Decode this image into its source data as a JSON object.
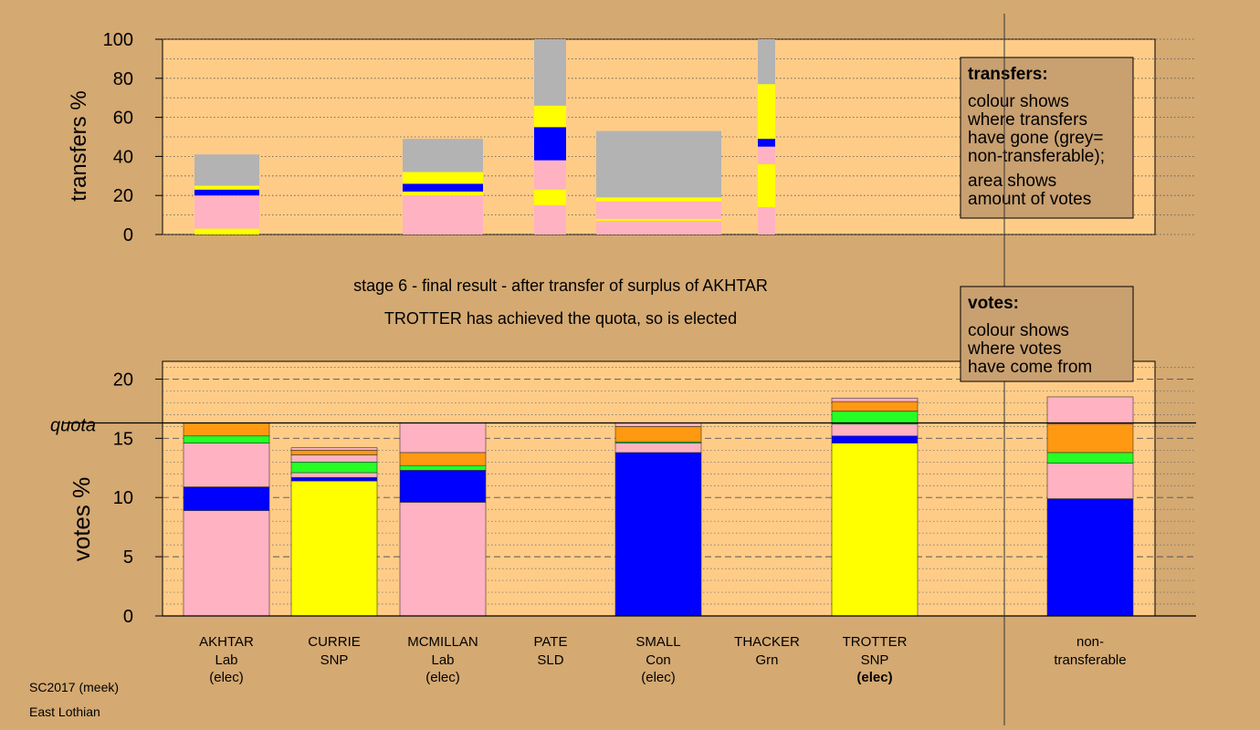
{
  "chart_data": [
    {
      "type": "bar",
      "ylabel": "transfers %",
      "ylim": [
        0,
        100
      ],
      "yticks": [
        0,
        20,
        40,
        60,
        80,
        100
      ],
      "grid": true,
      "legend": {
        "title": "transfers:",
        "lines": [
          "colour shows",
          "where transfers",
          "have gone (grey=",
          "non-transferable);"
        ],
        "lines2": [
          "area shows",
          "amount of votes"
        ]
      },
      "colors": {
        "pink": "#ffb2c1",
        "yellow": "#ffff00",
        "blue": "#0000ff",
        "grey": "#b3b3b3",
        "green": "#26ff26",
        "orange": "#ff9911"
      },
      "columns": [
        {
          "candidate": "AKHTAR",
          "segments": [
            {
              "color": "yellow",
              "value": 3
            },
            {
              "color": "pink",
              "value": 17
            },
            {
              "color": "blue",
              "value": 3
            },
            {
              "color": "yellow",
              "value": 2
            },
            {
              "color": "grey",
              "value": 16
            }
          ]
        },
        {
          "candidate": "MCMILLAN",
          "segments": [
            {
              "color": "pink",
              "value": 20
            },
            {
              "color": "yellow",
              "value": 2
            },
            {
              "color": "blue",
              "value": 4
            },
            {
              "color": "yellow",
              "value": 6
            },
            {
              "color": "grey",
              "value": 17
            }
          ]
        },
        {
          "candidate": "PATE",
          "segments": [
            {
              "color": "pink",
              "value": 15
            },
            {
              "color": "yellow",
              "value": 8
            },
            {
              "color": "pink",
              "value": 15
            },
            {
              "color": "blue",
              "value": 17
            },
            {
              "color": "yellow",
              "value": 11
            },
            {
              "color": "grey",
              "value": 34
            }
          ]
        },
        {
          "candidate": "SMALL",
          "segments": [
            {
              "color": "pink",
              "value": 7
            },
            {
              "color": "yellow",
              "value": 1
            },
            {
              "color": "pink",
              "value": 9
            },
            {
              "color": "yellow",
              "value": 2
            },
            {
              "color": "grey",
              "value": 34
            }
          ]
        },
        {
          "candidate": "THACKER",
          "segments": [
            {
              "color": "pink",
              "value": 14
            },
            {
              "color": "yellow",
              "value": 22
            },
            {
              "color": "pink",
              "value": 9
            },
            {
              "color": "blue",
              "value": 4
            },
            {
              "color": "yellow",
              "value": 28
            },
            {
              "color": "grey",
              "value": 23
            }
          ]
        }
      ]
    },
    {
      "type": "bar",
      "title": "stage 6 - final result - after transfer of surplus of AKHTAR",
      "subtitle": "TROTTER has achieved the quota, so is elected",
      "ylabel": "votes %",
      "ylim": [
        0,
        21.5
      ],
      "yticks": [
        0,
        5,
        10,
        15,
        20
      ],
      "quota_label": "quota",
      "quota": 16.3,
      "grid": true,
      "legend": {
        "title": "votes:",
        "lines": [
          "colour shows",
          "where votes",
          "have come from"
        ]
      },
      "categories": [
        {
          "name": "AKHTAR",
          "party": "Lab",
          "status": "(elec)"
        },
        {
          "name": "CURRIE",
          "party": "SNP",
          "status": ""
        },
        {
          "name": "MCMILLAN",
          "party": "Lab",
          "status": "(elec)"
        },
        {
          "name": "PATE",
          "party": "SLD",
          "status": ""
        },
        {
          "name": "SMALL",
          "party": "Con",
          "status": "(elec)"
        },
        {
          "name": "THACKER",
          "party": "Grn",
          "status": ""
        },
        {
          "name": "TROTTER",
          "party": "SNP",
          "status": "(elec)"
        },
        {
          "name": "non-",
          "party": "transferable",
          "status": ""
        }
      ],
      "stacks": [
        [
          {
            "color": "pink",
            "value": 8.9
          },
          {
            "color": "blue",
            "value": 2.0
          },
          {
            "color": "pink",
            "value": 3.7
          },
          {
            "color": "green",
            "value": 0.6
          },
          {
            "color": "orange",
            "value": 1.1
          }
        ],
        [
          {
            "color": "yellow",
            "value": 11.4
          },
          {
            "color": "blue",
            "value": 0.3
          },
          {
            "color": "pink",
            "value": 0.4
          },
          {
            "color": "green",
            "value": 0.9
          },
          {
            "color": "pink",
            "value": 0.6
          },
          {
            "color": "orange",
            "value": 0.4
          },
          {
            "color": "pink",
            "value": 0.2
          }
        ],
        [
          {
            "color": "pink",
            "value": 9.6
          },
          {
            "color": "blue",
            "value": 2.7
          },
          {
            "color": "green",
            "value": 0.4
          },
          {
            "color": "orange",
            "value": 1.1
          },
          {
            "color": "pink",
            "value": 2.5
          }
        ],
        [],
        [
          {
            "color": "blue",
            "value": 13.8
          },
          {
            "color": "pink",
            "value": 0.8
          },
          {
            "color": "green",
            "value": 0.1
          },
          {
            "color": "orange",
            "value": 1.3
          },
          {
            "color": "pink",
            "value": 0.3
          }
        ],
        [],
        [
          {
            "color": "yellow",
            "value": 14.6
          },
          {
            "color": "blue",
            "value": 0.6
          },
          {
            "color": "pink",
            "value": 1.0
          },
          {
            "color": "green",
            "value": 1.1
          },
          {
            "color": "orange",
            "value": 0.8
          },
          {
            "color": "pink",
            "value": 0.3
          }
        ],
        [
          {
            "color": "blue",
            "value": 9.9
          },
          {
            "color": "pink",
            "value": 3.0
          },
          {
            "color": "green",
            "value": 0.9
          },
          {
            "color": "orange",
            "value": 2.4
          },
          {
            "color": "pink",
            "value": 2.3
          }
        ]
      ]
    }
  ],
  "footer": {
    "line1": "SC2017 (meek)",
    "line2": "East Lothian"
  }
}
